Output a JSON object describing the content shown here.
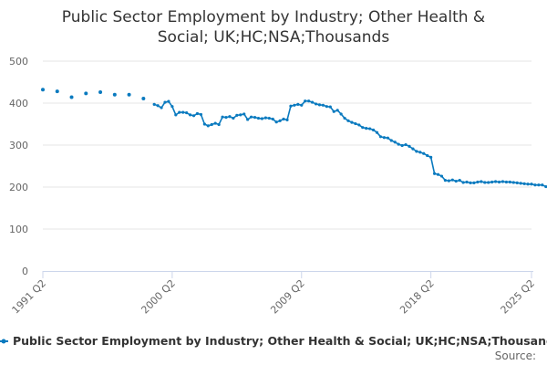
{
  "chart_data": {
    "type": "line",
    "title_lines": [
      "Public Sector Employment by Industry; Other Health &",
      "Social; UK;HC;NSA;Thousands"
    ],
    "xlabel": "",
    "ylabel": "",
    "ylim": [
      0,
      500
    ],
    "y_ticks": [
      0,
      100,
      200,
      300,
      400,
      500
    ],
    "x_range": [
      1991.25,
      2025.25
    ],
    "x_ticks": [
      {
        "value": 1991.25,
        "label": "1991 Q2"
      },
      {
        "value": 2000.25,
        "label": "2000 Q2"
      },
      {
        "value": 2009.25,
        "label": "2009 Q2"
      },
      {
        "value": 2018.25,
        "label": "2018 Q2"
      },
      {
        "value": 2025.25,
        "label": "2025 Q2"
      }
    ],
    "grid": true,
    "legend_position": "bottom",
    "series": [
      {
        "name": "Public Sector Employment by Industry; Other Health & Social; UK;HC;NSA;Thousand",
        "color": "#0a7abf",
        "annual": {
          "x": [
            1991.25,
            1992.25,
            1993.25,
            1994.25,
            1995.25,
            1996.25,
            1997.25,
            1998.25
          ],
          "values": [
            432,
            428,
            414,
            423,
            426,
            420,
            420,
            411
          ]
        },
        "quarterly": {
          "start": 1999.0,
          "step": 0.25,
          "values": [
            397,
            394,
            389,
            402,
            404,
            392,
            372,
            378,
            378,
            377,
            372,
            370,
            375,
            373,
            350,
            346,
            349,
            352,
            349,
            367,
            366,
            368,
            364,
            371,
            372,
            374,
            361,
            367,
            366,
            364,
            363,
            365,
            364,
            362,
            355,
            358,
            362,
            360,
            393,
            395,
            397,
            395,
            405,
            405,
            402,
            398,
            396,
            395,
            392,
            391,
            380,
            383,
            374,
            364,
            358,
            354,
            351,
            348,
            342,
            340,
            339,
            336,
            330,
            320,
            318,
            317,
            311,
            307,
            302,
            299,
            301,
            297,
            291,
            285,
            283,
            280,
            275,
            271,
            232,
            230,
            226,
            216,
            215,
            217,
            214,
            216,
            211,
            212,
            210,
            210,
            212,
            213,
            211,
            211,
            212,
            213,
            212,
            213,
            212,
            212,
            211,
            210,
            209,
            208,
            207,
            207,
            205,
            205,
            205,
            201
          ]
        }
      }
    ],
    "source_label": "Source:"
  }
}
